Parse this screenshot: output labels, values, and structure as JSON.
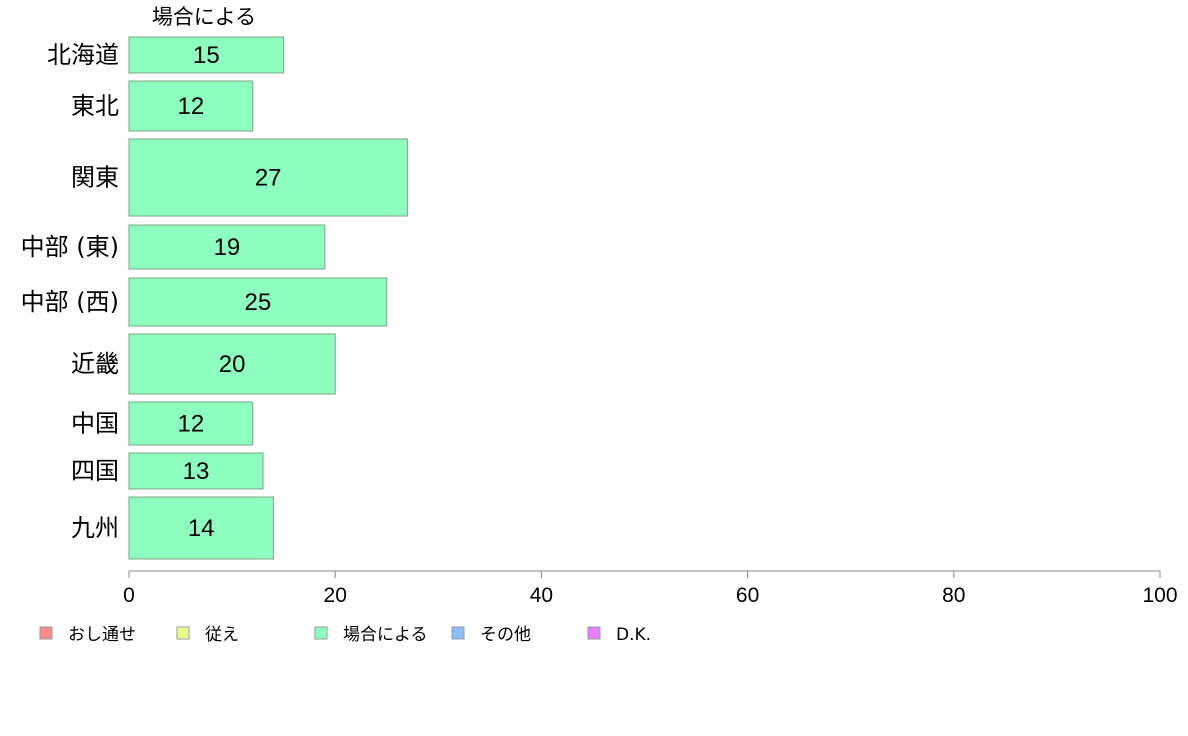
{
  "chart_data": {
    "type": "bar",
    "orientation": "horizontal",
    "stacked": true,
    "categories": [
      "北海道",
      "東北",
      "関東",
      "中部 (東)",
      "中部 (西)",
      "近畿",
      "中国",
      "四国",
      "九州"
    ],
    "series": [
      {
        "name": "場合による",
        "color": "#8dffbf",
        "values": [
          15,
          12,
          27,
          19,
          25,
          20,
          12,
          13,
          14
        ]
      }
    ],
    "series_header": "場合による",
    "xlim": [
      0,
      100
    ],
    "xticks": [
      0,
      20,
      40,
      60,
      80,
      100
    ],
    "grid": false,
    "legend_position": "bottom",
    "legend": [
      {
        "label": "おし通せ",
        "color": "#ff8b8b"
      },
      {
        "label": "従え",
        "color": "#e8ff8b"
      },
      {
        "label": "場合による",
        "color": "#8dffbf"
      },
      {
        "label": "その他",
        "color": "#8dbfff"
      },
      {
        "label": "D.K.",
        "color": "#e87dff"
      }
    ]
  }
}
